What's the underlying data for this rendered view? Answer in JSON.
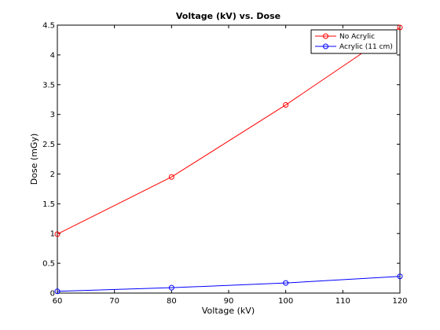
{
  "chart_data": {
    "type": "line",
    "title": "Voltage (kV) vs. Dose",
    "xlabel": "Voltage (kV)",
    "ylabel": "Dose (mGy)",
    "xlim": [
      60,
      120
    ],
    "ylim": [
      0,
      4.5
    ],
    "x_ticks": [
      "60",
      "70",
      "80",
      "90",
      "100",
      "110",
      "120"
    ],
    "y_ticks": [
      "0",
      "0.5",
      "1",
      "1.5",
      "2",
      "2.5",
      "3",
      "3.5",
      "4",
      "4.5"
    ],
    "grid": false,
    "legend_position": "top-right",
    "series": [
      {
        "name": "No Acrylic",
        "color": "#ff0000",
        "marker": "circle",
        "points": [
          {
            "x": 60,
            "y": 0.99
          },
          {
            "x": 80,
            "y": 1.95
          },
          {
            "x": 100,
            "y": 3.16
          },
          {
            "x": 120,
            "y": 4.46
          }
        ]
      },
      {
        "name": "Acrylic (11 cm)",
        "color": "#0000ff",
        "marker": "circle",
        "points": [
          {
            "x": 60,
            "y": 0.03
          },
          {
            "x": 80,
            "y": 0.09
          },
          {
            "x": 100,
            "y": 0.17
          },
          {
            "x": 120,
            "y": 0.28
          }
        ]
      }
    ]
  }
}
